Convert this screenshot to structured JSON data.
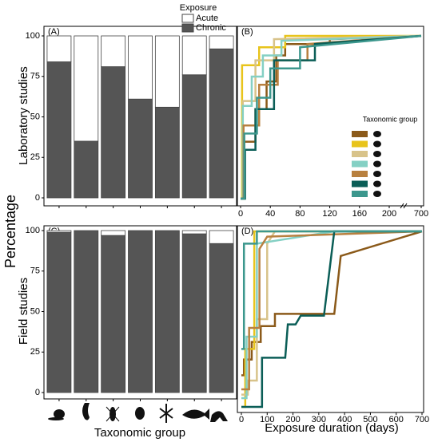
{
  "figure": {
    "y_label": "Percentage",
    "x_label_left": "Taxonomic group",
    "x_label_right": "Exposure duration (days)"
  },
  "chart_data": [
    {
      "type": "bar",
      "stacked": true,
      "panel_label": "(A)",
      "y_label": "Laboratory studies",
      "legend_title": "Exposure",
      "categories": [
        null,
        null,
        null,
        null,
        null,
        null,
        null
      ],
      "series": [
        {
          "name": "Acute",
          "color": "#ffffff",
          "values": [
            16,
            65,
            19,
            39,
            44,
            24,
            8
          ]
        },
        {
          "name": "Chronic",
          "color": "#555555",
          "values": [
            84,
            35,
            81,
            61,
            56,
            76,
            92
          ]
        }
      ],
      "ylim": [
        0,
        100
      ],
      "yticks": [
        0,
        25,
        50,
        75,
        100
      ]
    },
    {
      "type": "line",
      "panel_label": "(B)",
      "legend_title": "Taxonomic group",
      "xlim": [
        0,
        700
      ],
      "xticks": [
        0,
        40,
        80,
        120,
        160,
        200,
        700
      ],
      "x_break": 200,
      "ylim": [
        0,
        100
      ],
      "series": [
        {
          "color": "#8B5A1A",
          "x": [
            0,
            5,
            5,
            20,
            20,
            35,
            35,
            48,
            48,
            60,
            60,
            120,
            120,
            700
          ],
          "values": [
            0,
            0,
            35,
            35,
            55,
            55,
            72,
            72,
            88,
            88,
            95,
            95,
            98,
            100
          ]
        },
        {
          "color": "#E8C41C",
          "x": [
            0,
            2,
            2,
            25,
            25,
            60,
            60,
            700
          ],
          "values": [
            0,
            0,
            82,
            82,
            93,
            93,
            100,
            100
          ]
        },
        {
          "color": "#D8C38A",
          "x": [
            0,
            3,
            3,
            20,
            20,
            45,
            45,
            700
          ],
          "values": [
            0,
            0,
            60,
            60,
            85,
            85,
            98,
            100
          ]
        },
        {
          "color": "#84D0C4",
          "x": [
            0,
            3,
            3,
            15,
            15,
            30,
            30,
            55,
            55,
            700
          ],
          "values": [
            0,
            0,
            57,
            57,
            75,
            75,
            88,
            88,
            97,
            100
          ]
        },
        {
          "color": "#B8803F",
          "x": [
            0,
            4,
            4,
            25,
            25,
            50,
            50,
            90,
            90,
            700
          ],
          "values": [
            0,
            0,
            45,
            45,
            70,
            70,
            85,
            85,
            95,
            100
          ]
        },
        {
          "color": "#0B5E57",
          "x": [
            0,
            6,
            6,
            20,
            20,
            45,
            45,
            100,
            100,
            700
          ],
          "values": [
            0,
            0,
            30,
            30,
            55,
            55,
            85,
            85,
            95,
            100
          ]
        },
        {
          "color": "#3C978D",
          "x": [
            0,
            5,
            5,
            22,
            22,
            40,
            40,
            80,
            80,
            700
          ],
          "values": [
            0,
            0,
            40,
            40,
            62,
            62,
            80,
            80,
            93,
            100
          ]
        }
      ]
    },
    {
      "type": "bar",
      "stacked": true,
      "panel_label": "(C)",
      "y_label": "Field studies",
      "categories": [
        null,
        null,
        null,
        null,
        null,
        null,
        null
      ],
      "series": [
        {
          "color": "#ffffff",
          "values": [
            1,
            0,
            3,
            0,
            0,
            2,
            8
          ]
        },
        {
          "color": "#555555",
          "values": [
            99,
            100,
            97,
            100,
            100,
            98,
            92
          ]
        }
      ],
      "ylim": [
        0,
        100
      ],
      "yticks": [
        0,
        25,
        50,
        75,
        100
      ]
    },
    {
      "type": "line",
      "panel_label": "(D)",
      "xlim": [
        0,
        700
      ],
      "xticks": [
        0,
        100,
        200,
        300,
        400,
        500,
        600,
        700
      ],
      "ylim": [
        0,
        100
      ],
      "series": [
        {
          "color": "#8B5A1A",
          "x": [
            0,
            10,
            10,
            40,
            40,
            75,
            75,
            130,
            130,
            360,
            385,
            700
          ],
          "values": [
            18,
            18,
            27,
            27,
            37,
            37,
            46,
            46,
            53,
            53,
            86,
            100
          ]
        },
        {
          "color": "#E8C41C",
          "x": [
            0,
            15,
            15,
            50,
            50,
            700
          ],
          "values": [
            0,
            0,
            33,
            33,
            100,
            100
          ]
        },
        {
          "color": "#D8C38A",
          "x": [
            0,
            25,
            25,
            60,
            60,
            100,
            100,
            130,
            700
          ],
          "values": [
            7,
            7,
            15,
            15,
            50,
            50,
            93,
            100,
            100
          ]
        },
        {
          "color": "#84D0C4",
          "x": [
            0,
            20,
            20,
            60,
            60,
            360,
            700
          ],
          "values": [
            5,
            5,
            40,
            40,
            93,
            100,
            100
          ]
        },
        {
          "color": "#B8803F",
          "x": [
            0,
            30,
            30,
            70,
            70,
            100,
            700
          ],
          "values": [
            10,
            10,
            45,
            45,
            90,
            97,
            100
          ]
        },
        {
          "color": "#0B5E57",
          "x": [
            0,
            80,
            80,
            170,
            180,
            210,
            230,
            320,
            360,
            700
          ],
          "values": [
            0,
            0,
            28,
            28,
            47,
            47,
            52,
            52,
            100,
            100
          ]
        },
        {
          "color": "#3C978D",
          "x": [
            0,
            10,
            10,
            60,
            60,
            700
          ],
          "values": [
            33,
            33,
            93,
            93,
            100,
            100
          ]
        }
      ]
    }
  ]
}
